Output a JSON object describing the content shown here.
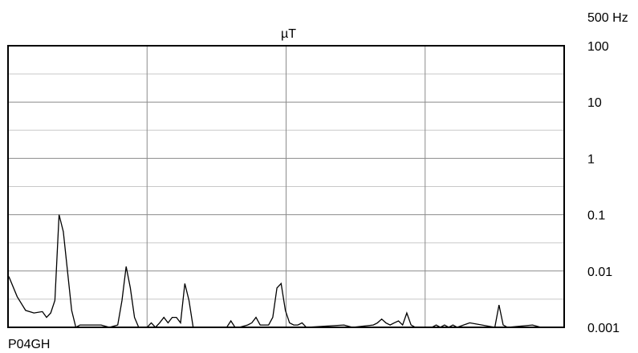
{
  "chart_data": {
    "type": "line",
    "title": "µT",
    "frequency_label": "500 Hz",
    "footer_label": "P04GH",
    "y_scale": "log",
    "ylim": [
      0.001,
      100
    ],
    "y_ticks": [
      "100",
      "10",
      "1",
      "0.1",
      "0.01",
      "0.001"
    ],
    "grid": true,
    "series": [
      {
        "values": [
          [
            0,
            0.008
          ],
          [
            2,
            0.0035
          ],
          [
            4,
            0.002
          ],
          [
            6,
            0.0018
          ],
          [
            8,
            0.0019
          ],
          [
            9,
            0.0015
          ],
          [
            10,
            0.0018
          ],
          [
            11,
            0.003
          ],
          [
            12,
            0.1
          ],
          [
            13,
            0.05
          ],
          [
            14,
            0.01
          ],
          [
            15,
            0.002
          ],
          [
            16,
            0.001
          ],
          [
            17,
            0.0011
          ],
          [
            18,
            0.0011
          ],
          [
            20,
            0.0011
          ],
          [
            22,
            0.0011
          ],
          [
            24,
            0.001
          ],
          [
            26,
            0.0011
          ],
          [
            27,
            0.003
          ],
          [
            28,
            0.012
          ],
          [
            29,
            0.005
          ],
          [
            30,
            0.0015
          ],
          [
            31,
            0.001
          ],
          [
            33,
            0.001
          ],
          [
            34,
            0.0012
          ],
          [
            35,
            0.001
          ],
          [
            36,
            0.0012
          ],
          [
            37,
            0.0015
          ],
          [
            38,
            0.0012
          ],
          [
            39,
            0.0015
          ],
          [
            40,
            0.0015
          ],
          [
            41,
            0.0012
          ],
          [
            42,
            0.006
          ],
          [
            43,
            0.003
          ],
          [
            44,
            0.001
          ],
          [
            52,
            0.001
          ],
          [
            53,
            0.0013
          ],
          [
            54,
            0.001
          ],
          [
            55,
            0.001
          ],
          [
            57,
            0.0011
          ],
          [
            58,
            0.0012
          ],
          [
            59,
            0.0015
          ],
          [
            60,
            0.0011
          ],
          [
            61,
            0.0011
          ],
          [
            62,
            0.0011
          ],
          [
            63,
            0.0015
          ],
          [
            64,
            0.005
          ],
          [
            65,
            0.006
          ],
          [
            66,
            0.002
          ],
          [
            67,
            0.0012
          ],
          [
            68,
            0.0011
          ],
          [
            69,
            0.0011
          ],
          [
            70,
            0.0012
          ],
          [
            71,
            0.001
          ],
          [
            80,
            0.0011
          ],
          [
            82,
            0.001
          ],
          [
            87,
            0.0011
          ],
          [
            88,
            0.0012
          ],
          [
            89,
            0.0014
          ],
          [
            90,
            0.0012
          ],
          [
            91,
            0.0011
          ],
          [
            92,
            0.0012
          ],
          [
            93,
            0.0013
          ],
          [
            94,
            0.0011
          ],
          [
            95,
            0.0018
          ],
          [
            96,
            0.0011
          ],
          [
            97,
            0.001
          ],
          [
            101,
            0.001
          ],
          [
            102,
            0.0011
          ],
          [
            103,
            0.001
          ],
          [
            104,
            0.0011
          ],
          [
            105,
            0.001
          ],
          [
            106,
            0.0011
          ],
          [
            107,
            0.001
          ],
          [
            110,
            0.0012
          ],
          [
            116,
            0.001
          ],
          [
            117,
            0.0025
          ],
          [
            118,
            0.0011
          ],
          [
            119,
            0.001
          ],
          [
            125,
            0.0011
          ],
          [
            127,
            0.001
          ]
        ]
      }
    ]
  }
}
